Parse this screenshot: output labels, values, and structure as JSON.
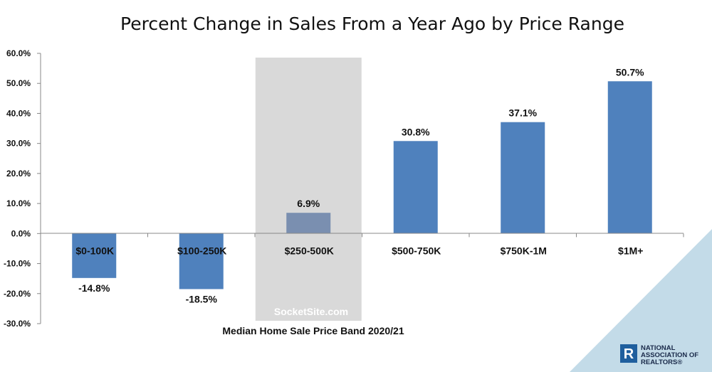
{
  "chart_data": {
    "type": "bar",
    "title": "Percent Change in Sales From a Year Ago by Price Range",
    "xlabel": "Median Home Sale Price Band 2020/21",
    "ylabel": "",
    "ylim": [
      -30,
      60
    ],
    "yticks": [
      "-30.0%",
      "-20.0%",
      "-10.0%",
      "0.0%",
      "10.0%",
      "20.0%",
      "30.0%",
      "40.0%",
      "50.0%",
      "60.0%"
    ],
    "categories": [
      "$0-100K",
      "$100-250K",
      "$250-500K",
      "$500-750K",
      "$750K-1M",
      "$1M+"
    ],
    "values": [
      -14.8,
      -18.5,
      6.9,
      30.8,
      37.1,
      50.7
    ],
    "value_labels": [
      "-14.8%",
      "-18.5%",
      "6.9%",
      "30.8%",
      "37.1%",
      "50.7%"
    ],
    "highlight_index": 2,
    "grid": false,
    "colors": {
      "bar": "#4f81bd",
      "bar_highlight": "#7a8fb0",
      "highlight_band": "#d9d9d9",
      "corner_triangle": "#c3dbe8"
    }
  },
  "watermark": "SocketSite.com",
  "logo": {
    "line1": "NATIONAL",
    "line2": "ASSOCIATION OF",
    "line3": "REALTORS®",
    "mark": "R",
    "color": "#1f5f9e"
  }
}
